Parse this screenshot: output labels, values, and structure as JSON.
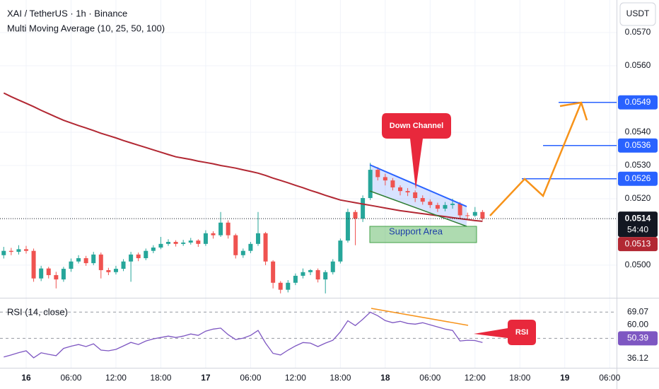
{
  "header": {
    "symbol": "XAI / TetherUS · 1h · Binance",
    "indicator": "Multi Moving Average (10, 25, 50, 100)",
    "currency": "USDT"
  },
  "chart_data": [
    {
      "type": "candlestick",
      "xticks": [
        "16",
        "06:00",
        "12:00",
        "18:00",
        "17",
        "06:00",
        "12:00",
        "18:00",
        "18",
        "06:00",
        "12:00",
        "18:00",
        "19",
        "06:00"
      ],
      "ylim": [
        0.04904,
        0.05798
      ],
      "yticks": [
        {
          "value": 0.05,
          "label": "0.0500"
        },
        {
          "value": 0.052,
          "label": "0.0520"
        },
        {
          "value": 0.053,
          "label": "0.0530"
        },
        {
          "value": 0.054,
          "label": "0.0540"
        },
        {
          "value": 0.056,
          "label": "0.0560"
        },
        {
          "value": 0.057,
          "label": "0.0570"
        }
      ],
      "grid": true,
      "up_color": "#26a69a",
      "down_color": "#ef5350",
      "open": [
        0.0503,
        0.05043,
        0.0504,
        0.05048,
        0.05043,
        0.0496,
        0.0499,
        0.0497,
        0.04957,
        0.04989,
        0.05011,
        0.05021,
        0.05006,
        0.05032,
        0.04985,
        0.04979,
        0.04989,
        0.05011,
        0.05032,
        0.05021,
        0.05043,
        0.05053,
        0.05064,
        0.0507,
        0.05064,
        0.05068,
        0.05074,
        0.05064,
        0.05096,
        0.0509,
        0.05128,
        0.0509,
        0.0503,
        0.05043,
        0.05064,
        0.05096,
        0.05011,
        0.04947,
        0.04926,
        0.04947,
        0.04968,
        0.04979,
        0.04985,
        0.04957,
        0.04979,
        0.05011,
        0.05074,
        0.0516,
        0.0514,
        0.05202,
        0.05287,
        0.05265,
        0.05255,
        0.05234,
        0.05223,
        0.05219,
        0.05202,
        0.05191,
        0.05181,
        0.0517,
        0.05181,
        0.05185,
        0.0515,
        0.05149,
        0.0516
      ],
      "high": [
        0.05055,
        0.05052,
        0.0506,
        0.05058,
        0.0505,
        0.04998,
        0.04995,
        0.0498,
        0.04995,
        0.0502,
        0.0503,
        0.05028,
        0.0504,
        0.05038,
        0.04992,
        0.04998,
        0.05018,
        0.0504,
        0.05038,
        0.0505,
        0.0506,
        0.05085,
        0.05078,
        0.05075,
        0.05076,
        0.05082,
        0.05078,
        0.05105,
        0.05102,
        0.0516,
        0.05135,
        0.05095,
        0.0505,
        0.0507,
        0.0516,
        0.051,
        0.05015,
        0.04952,
        0.04955,
        0.04975,
        0.0499,
        0.04988,
        0.0499,
        0.04985,
        0.05018,
        0.0508,
        0.0517,
        0.05166,
        0.0521,
        0.05308,
        0.05295,
        0.05275,
        0.05262,
        0.0524,
        0.05232,
        0.05225,
        0.0521,
        0.05198,
        0.05188,
        0.0519,
        0.052,
        0.0519,
        0.05158,
        0.05175,
        0.05166
      ],
      "low": [
        0.0502,
        0.0503,
        0.05032,
        0.05035,
        0.0495,
        0.04952,
        0.0496,
        0.0493,
        0.0495,
        0.0498,
        0.05005,
        0.04998,
        0.05,
        0.0496,
        0.0497,
        0.04972,
        0.04982,
        0.0495,
        0.05012,
        0.05015,
        0.05036,
        0.05048,
        0.05058,
        0.05056,
        0.05058,
        0.05062,
        0.05055,
        0.05058,
        0.0508,
        0.05085,
        0.0508,
        0.0502,
        0.05022,
        0.05036,
        0.05058,
        0.05,
        0.0493,
        0.04915,
        0.04918,
        0.0494,
        0.0496,
        0.0497,
        0.04948,
        0.04915,
        0.04972,
        0.05005,
        0.05068,
        0.0506,
        0.0513,
        0.05196,
        0.05255,
        0.0524,
        0.05225,
        0.0521,
        0.05208,
        0.0519,
        0.05182,
        0.05172,
        0.0516,
        0.05162,
        0.0517,
        0.0514,
        0.0514,
        0.05145,
        0.05135
      ],
      "close": [
        0.05043,
        0.0504,
        0.05048,
        0.05043,
        0.0496,
        0.0499,
        0.0497,
        0.04957,
        0.04989,
        0.05011,
        0.05021,
        0.05006,
        0.05032,
        0.04985,
        0.04979,
        0.04989,
        0.05011,
        0.05032,
        0.05021,
        0.05043,
        0.05053,
        0.05064,
        0.0507,
        0.05064,
        0.05068,
        0.05074,
        0.05064,
        0.05096,
        0.0509,
        0.05128,
        0.0509,
        0.0503,
        0.05043,
        0.05064,
        0.05096,
        0.05011,
        0.04947,
        0.04926,
        0.04947,
        0.04968,
        0.04979,
        0.04985,
        0.04957,
        0.04979,
        0.05011,
        0.05074,
        0.0516,
        0.0514,
        0.05202,
        0.05287,
        0.05265,
        0.05255,
        0.05234,
        0.05223,
        0.05219,
        0.05202,
        0.05191,
        0.05181,
        0.0517,
        0.05181,
        0.05185,
        0.0515,
        0.05149,
        0.0516,
        0.0514
      ],
      "ma_color": "#b22833",
      "ma_values": [
        0.05518,
        0.05507,
        0.05497,
        0.05487,
        0.05477,
        0.05466,
        0.05456,
        0.05446,
        0.05436,
        0.05428,
        0.0542,
        0.05413,
        0.05405,
        0.05397,
        0.0539,
        0.05383,
        0.05375,
        0.05368,
        0.05361,
        0.05354,
        0.05347,
        0.0534,
        0.05333,
        0.05326,
        0.05322,
        0.05318,
        0.05313,
        0.05309,
        0.05305,
        0.053,
        0.05296,
        0.05292,
        0.05287,
        0.05282,
        0.05277,
        0.0527,
        0.05262,
        0.05255,
        0.05248,
        0.0524,
        0.05233,
        0.05225,
        0.05218,
        0.0521,
        0.05203,
        0.05196,
        0.05192,
        0.05188,
        0.05184,
        0.0518,
        0.05176,
        0.05172,
        0.05168,
        0.05164,
        0.05161,
        0.05158,
        0.05155,
        0.05152,
        0.05149,
        0.05146,
        0.05143,
        0.0514,
        0.05137,
        0.05134,
        0.05132
      ],
      "price_labels": [
        {
          "value": 0.0549,
          "label": "0.0549"
        },
        {
          "value": 0.0536,
          "label": "0.0536"
        },
        {
          "value": 0.0526,
          "label": "0.0526"
        }
      ],
      "current_price": {
        "value": 0.0514,
        "label": "0.0514"
      },
      "countdown": "54:40",
      "ma_last": {
        "value": 0.0513,
        "label": "0.0513"
      },
      "annotations": {
        "down_channel": "Down Channel",
        "support_area": "Support Area"
      }
    },
    {
      "type": "line",
      "title": "RSI (14, close)",
      "ylim": [
        29.4,
        78.3
      ],
      "yticks": [
        {
          "value": 69.07,
          "label": "69.07"
        },
        {
          "value": 60,
          "label": "60.00"
        },
        {
          "value": 50.39,
          "label": "50.39"
        },
        {
          "value": 36.12,
          "label": "36.12"
        }
      ],
      "color": "#7e57c2",
      "values": [
        37.1,
        38.5,
        40.2,
        41.5,
        36.5,
        40.1,
        39.0,
        38.0,
        43.2,
        44.8,
        46.0,
        44.5,
        46.5,
        42.0,
        41.5,
        42.5,
        45.0,
        47.5,
        46.0,
        48.5,
        50.0,
        51.0,
        52.0,
        51.0,
        52.0,
        53.5,
        52.5,
        55.5,
        57.0,
        57.7,
        53.0,
        49.5,
        50.5,
        52.5,
        56.0,
        47.0,
        39.7,
        38.5,
        42.0,
        45.0,
        47.4,
        47.0,
        44.5,
        47.0,
        49.0,
        55.0,
        62.9,
        59.5,
        64.0,
        69.0,
        66.5,
        63.0,
        61.5,
        62.5,
        61.0,
        60.5,
        61.5,
        60.0,
        58.5,
        57.0,
        56.0,
        48.5,
        49.0,
        48.8,
        47.4
      ],
      "annotation": "RSI"
    }
  ]
}
